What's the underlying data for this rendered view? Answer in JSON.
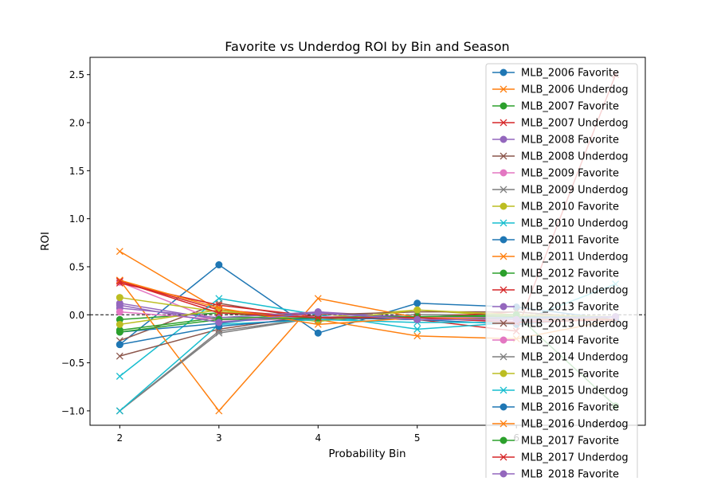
{
  "chart_data": {
    "type": "line",
    "title": "Favorite vs Underdog ROI by Bin and Season",
    "xlabel": "Probability Bin",
    "ylabel": "ROI",
    "xlim": [
      1.7,
      7.3
    ],
    "ylim": [
      -1.15,
      2.68
    ],
    "x_ticks": [
      2,
      3,
      4,
      5,
      6
    ],
    "y_ticks": [
      -1.0,
      -0.5,
      0.0,
      0.5,
      1.0,
      1.5,
      2.0,
      2.5
    ],
    "y_tick_labels": [
      "−1.0",
      "−0.5",
      "0.0",
      "0.5",
      "1.0",
      "1.5",
      "2.0",
      "2.5"
    ],
    "zero_line": {
      "y": 0,
      "style": "dashed",
      "color": "#000000"
    },
    "grid": false,
    "legend_position": "upper-right",
    "x": [
      2,
      3,
      4,
      5,
      6,
      7
    ],
    "series": [
      {
        "name": "MLB_2006 Favorite",
        "color": "#1f77b4",
        "marker": "o",
        "values": [
          -0.31,
          0.52,
          -0.19,
          0.12,
          0.08,
          -0.05
        ]
      },
      {
        "name": "MLB_2006 Underdog",
        "color": "#ff7f0e",
        "marker": "x",
        "values": [
          0.66,
          0.05,
          -0.05,
          -0.22,
          -0.25,
          -0.05
        ]
      },
      {
        "name": "MLB_2007 Favorite",
        "color": "#2ca02c",
        "marker": "o",
        "values": [
          -0.05,
          0.02,
          -0.05,
          -0.03,
          -0.03,
          -0.02
        ]
      },
      {
        "name": "MLB_2007 Underdog",
        "color": "#d62728",
        "marker": "x",
        "values": [
          0.35,
          0.05,
          -0.03,
          -0.05,
          -0.17,
          2.5
        ]
      },
      {
        "name": "MLB_2008 Favorite",
        "color": "#9467bd",
        "marker": "o",
        "values": [
          0.12,
          -0.05,
          -0.03,
          -0.03,
          -0.05,
          -0.02
        ]
      },
      {
        "name": "MLB_2008 Underdog",
        "color": "#8c564b",
        "marker": "x",
        "values": [
          -0.27,
          0.12,
          -0.05,
          -0.03,
          0.0,
          -0.05
        ]
      },
      {
        "name": "MLB_2009 Favorite",
        "color": "#e377c2",
        "marker": "o",
        "values": [
          0.34,
          -0.07,
          -0.03,
          -0.03,
          -0.07,
          -0.02
        ]
      },
      {
        "name": "MLB_2009 Underdog",
        "color": "#7f7f7f",
        "marker": "x",
        "values": [
          -1.0,
          -0.17,
          -0.03,
          0.0,
          0.0,
          -0.05
        ]
      },
      {
        "name": "MLB_2010 Favorite",
        "color": "#bcbd22",
        "marker": "o",
        "values": [
          0.18,
          0.03,
          -0.03,
          0.05,
          -0.02,
          -0.02
        ]
      },
      {
        "name": "MLB_2010 Underdog",
        "color": "#17becf",
        "marker": "x",
        "values": [
          -0.64,
          0.17,
          0.0,
          -0.15,
          -0.08,
          0.32
        ]
      },
      {
        "name": "MLB_2011 Favorite",
        "color": "#1f77b4",
        "marker": "o",
        "values": [
          -0.18,
          -0.09,
          0.03,
          -0.05,
          -0.1,
          -0.02
        ]
      },
      {
        "name": "MLB_2011 Underdog",
        "color": "#ff7f0e",
        "marker": "x",
        "values": [
          0.36,
          -1.0,
          0.17,
          -0.03,
          0.0,
          -0.05
        ]
      },
      {
        "name": "MLB_2012 Favorite",
        "color": "#2ca02c",
        "marker": "o",
        "values": [
          -0.16,
          -0.03,
          -0.02,
          -0.02,
          -0.02,
          -0.02
        ]
      },
      {
        "name": "MLB_2012 Underdog",
        "color": "#d62728",
        "marker": "x",
        "values": [
          0.33,
          0.1,
          -0.02,
          -0.03,
          0.03,
          -0.05
        ]
      },
      {
        "name": "MLB_2013 Favorite",
        "color": "#9467bd",
        "marker": "o",
        "values": [
          0.07,
          -0.03,
          0.03,
          -0.03,
          -0.07,
          -0.02
        ]
      },
      {
        "name": "MLB_2013 Underdog",
        "color": "#8c564b",
        "marker": "x",
        "values": [
          -0.43,
          -0.15,
          0.0,
          0.03,
          0.03,
          -0.05
        ]
      },
      {
        "name": "MLB_2014 Favorite",
        "color": "#e377c2",
        "marker": "o",
        "values": [
          0.03,
          -0.05,
          -0.02,
          -0.03,
          -0.03,
          -0.02
        ]
      },
      {
        "name": "MLB_2014 Underdog",
        "color": "#7f7f7f",
        "marker": "x",
        "values": [
          -1.0,
          -0.19,
          -0.03,
          -0.02,
          0.0,
          -0.05
        ]
      },
      {
        "name": "MLB_2015 Favorite",
        "color": "#bcbd22",
        "marker": "o",
        "values": [
          -0.1,
          0.05,
          -0.07,
          0.05,
          0.0,
          -0.02
        ]
      },
      {
        "name": "MLB_2015 Underdog",
        "color": "#17becf",
        "marker": "x",
        "values": [
          -1.0,
          -0.1,
          -0.05,
          -0.08,
          -0.08,
          -0.05
        ]
      },
      {
        "name": "MLB_2016 Favorite",
        "color": "#1f77b4",
        "marker": "o",
        "values": [
          -0.31,
          -0.12,
          -0.03,
          -0.05,
          -0.03,
          -0.02
        ]
      },
      {
        "name": "MLB_2016 Underdog",
        "color": "#ff7f0e",
        "marker": "x",
        "values": [
          0.36,
          0.07,
          -0.1,
          -0.03,
          -0.05,
          -0.05
        ]
      },
      {
        "name": "MLB_2017 Favorite",
        "color": "#2ca02c",
        "marker": "o",
        "values": [
          -0.18,
          -0.05,
          -0.03,
          -0.02,
          0.0,
          -0.95
        ]
      },
      {
        "name": "MLB_2017 Underdog",
        "color": "#d62728",
        "marker": "x",
        "values": [
          0.35,
          0.02,
          -0.03,
          -0.03,
          -0.08,
          -0.05
        ]
      },
      {
        "name": "MLB_2018 Favorite",
        "color": "#9467bd",
        "marker": "o",
        "values": [
          0.1,
          -0.08,
          0.02,
          -0.05,
          -0.05,
          -0.02
        ]
      }
    ]
  }
}
